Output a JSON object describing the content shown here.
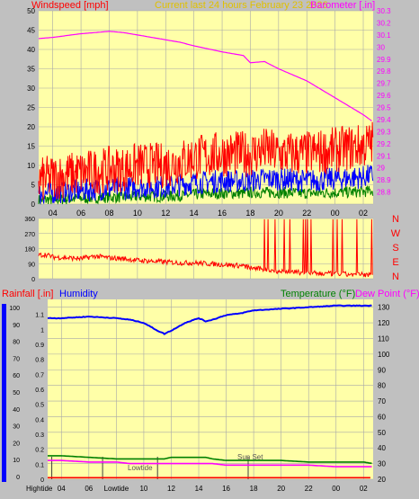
{
  "colors": {
    "plot_bg": "#ffffa8",
    "frame_bg": "#c0c0c0",
    "grid": "#a8a8a8",
    "wind_gust": "#ff0000",
    "wind_avg": "#0000ff",
    "wind_low": "#008000",
    "barometer": "#ff00ff",
    "direction": "#ff0000",
    "humidity": "#0000ff",
    "temperature": "#008000",
    "dew_point": "#ff00ff",
    "rainfall": "#ff0000",
    "current_label": "#e0c000"
  },
  "header": {
    "wind_label": "Windspeed [mph]",
    "current_label": "Current last 24 hours February 23 2026",
    "baro_label": "Barometer [.in]"
  },
  "panel3": {
    "rain_label": "Rainfall [.in]",
    "humidity_label": "Humidity",
    "temp_label": "Temperature (°F)",
    "dew_label": "Dew Point (°F)",
    "sunset_label": "Sun Set",
    "hightide_label": "Hightide",
    "lowtide_label": "Lowtide"
  },
  "time_ticks": [
    "04",
    "06",
    "08",
    "10",
    "12",
    "14",
    "16",
    "18",
    "20",
    "22",
    "00",
    "02"
  ],
  "bottom_ticks": [
    "04",
    "06",
    "Lowtide",
    "10",
    "12",
    "14",
    "16",
    "18",
    "20",
    "22",
    "00",
    "02"
  ],
  "direction_letters": [
    "N",
    "W",
    "S",
    "E",
    "N"
  ],
  "chart_data": [
    {
      "type": "line",
      "title": "Current last 24 hours February 23 2026",
      "ylabel": "Windspeed [mph]",
      "ylim": [
        0,
        50
      ],
      "y_ticks": [
        "0",
        "5",
        "10",
        "15",
        "20",
        "25",
        "30",
        "35",
        "40",
        "45",
        "50"
      ],
      "y2label": "Barometer [.in]",
      "y2lim": [
        28.7,
        30.3
      ],
      "y2_ticks": [
        "28.8",
        "28.9",
        "29",
        "29.1",
        "29.2",
        "29.3",
        "29.4",
        "29.5",
        "29.6",
        "29.7",
        "29.8",
        "29.9",
        "30",
        "30.1",
        "30.2",
        "30.3"
      ],
      "x_hours": [
        3,
        4,
        6,
        8,
        9,
        10,
        12,
        13,
        14,
        16,
        17.5,
        18,
        19,
        20,
        22,
        24,
        26,
        26.7
      ],
      "series": [
        {
          "axis": "right",
          "values": [
            30.07,
            30.08,
            30.11,
            30.13,
            30.12,
            30.1,
            30.06,
            30.04,
            30.01,
            29.96,
            29.93,
            29.87,
            29.88,
            29.82,
            29.72,
            29.58,
            29.44,
            29.38
          ]
        },
        {
          "axis": "left",
          "values": [
            6,
            7,
            8,
            9,
            9,
            10,
            10,
            11,
            12,
            13,
            13,
            13,
            14,
            13,
            13,
            14,
            15,
            16
          ]
        },
        {
          "axis": "left",
          "values": [
            2.5,
            3,
            3.5,
            4,
            4,
            4.5,
            4.5,
            5,
            5.5,
            6,
            6,
            6,
            6.5,
            6.5,
            6,
            6.5,
            7,
            7.5
          ]
        },
        {
          "axis": "left",
          "values": [
            1,
            1.2,
            1.5,
            1.8,
            1.8,
            2,
            2,
            2.2,
            2.5,
            2.8,
            2.8,
            3,
            3,
            3,
            2.8,
            3,
            3.2,
            3.5
          ]
        }
      ]
    },
    {
      "type": "line",
      "ylim": [
        0,
        360
      ],
      "y_ticks": [
        "0",
        "90",
        "180",
        "270",
        "360"
      ],
      "y_labels": [
        "N",
        "W",
        "S",
        "E",
        "N"
      ],
      "x_hours": [
        3,
        3.5,
        4,
        5,
        6,
        7,
        8,
        9,
        10,
        11,
        12,
        13,
        14,
        15,
        16,
        17,
        17.5,
        18,
        19,
        20,
        21,
        22,
        23,
        24,
        25,
        26,
        26.7
      ],
      "series": [
        {
          "values": [
            140,
            145,
            130,
            125,
            120,
            135,
            125,
            120,
            110,
            105,
            100,
            95,
            95,
            90,
            85,
            80,
            75,
            65,
            55,
            45,
            40,
            35,
            30,
            30,
            25,
            25,
            20
          ]
        }
      ]
    },
    {
      "type": "line",
      "y_left_ticks": [
        "0",
        "0.1",
        "0.2",
        "0.3",
        "0.4",
        "0.5",
        "0.6",
        "0.7",
        "0.8",
        "0.9",
        "1",
        "1.1"
      ],
      "y_left_outer_ticks": [
        "0",
        "10",
        "20",
        "30",
        "40",
        "50",
        "60",
        "70",
        "80",
        "90",
        "100"
      ],
      "y_right_ticks": [
        "20",
        "30",
        "40",
        "50",
        "60",
        "70",
        "80",
        "90",
        "100",
        "110",
        "120",
        "130"
      ],
      "x_hours": [
        3,
        4,
        6,
        8,
        9,
        10,
        11,
        11.5,
        12,
        13,
        14,
        14.5,
        15,
        16,
        17,
        18,
        20,
        22,
        24,
        26,
        26.7
      ],
      "series": [
        {
          "values": [
            123,
            123,
            124,
            123,
            122,
            120,
            115,
            113,
            115,
            120,
            123,
            121,
            122,
            125,
            126,
            128,
            129,
            130,
            131,
            131,
            131
          ]
        },
        {
          "values": [
            35,
            35,
            34,
            33,
            33,
            33,
            33,
            33,
            34,
            34,
            34,
            34,
            33,
            32,
            32,
            32,
            32,
            31,
            31,
            31,
            30
          ]
        },
        {
          "values": [
            32,
            32,
            31,
            31,
            30,
            30,
            30,
            30,
            30,
            30,
            30,
            30,
            30,
            29,
            29,
            29,
            29,
            29,
            28,
            28,
            28
          ]
        },
        {
          "values": [
            0.01,
            0.01,
            0.01,
            0.01,
            0.01,
            0.01,
            0.01,
            0.01,
            0.01,
            0.01,
            0.01,
            0.01,
            0.01,
            0.01,
            0.01,
            0.01,
            0.01,
            0.01,
            0.01,
            0.01,
            0.01
          ]
        }
      ],
      "markers_hours": [
        3.3,
        7.0,
        11.0,
        17.6
      ]
    }
  ]
}
